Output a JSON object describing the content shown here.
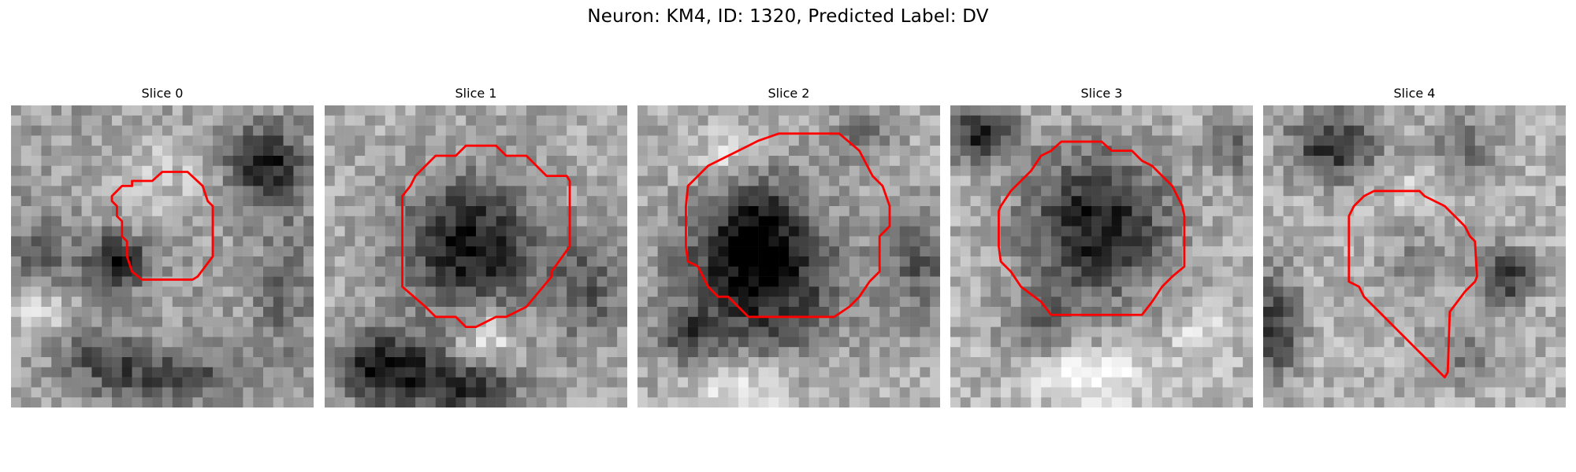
{
  "figure": {
    "suptitle": "Neuron: KM4, ID: 1320, Predicted Label: DV",
    "contour_color": "#ff0000"
  },
  "slices": [
    {
      "title": "Slice 0"
    },
    {
      "title": "Slice 1"
    },
    {
      "title": "Slice 2"
    },
    {
      "title": "Slice 3"
    },
    {
      "title": "Slice 4"
    }
  ]
}
